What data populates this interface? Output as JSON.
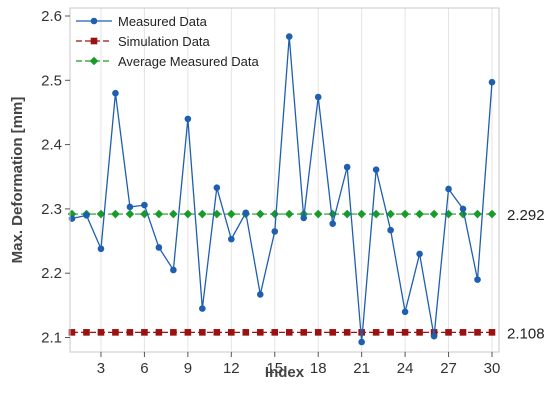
{
  "chart_data": {
    "type": "line",
    "xlabel": "Index",
    "ylabel": "Max. Deformation [mm]",
    "xlim": [
      0,
      31
    ],
    "ylim": [
      2.08,
      2.61
    ],
    "x_ticks": [
      3,
      6,
      9,
      12,
      15,
      18,
      21,
      24,
      27,
      30
    ],
    "y_ticks": [
      2.1,
      2.2,
      2.3,
      2.4,
      2.5,
      2.6
    ],
    "grid": "vertical",
    "legend_position": "top-left",
    "x": [
      1,
      2,
      3,
      4,
      5,
      6,
      7,
      8,
      9,
      10,
      11,
      12,
      13,
      14,
      15,
      16,
      17,
      18,
      19,
      20,
      21,
      22,
      23,
      24,
      25,
      26,
      27,
      28,
      29,
      30
    ],
    "series": [
      {
        "name": "Measured Data",
        "color": "#1f5fb0",
        "marker": "circle",
        "line_style": "solid",
        "values": [
          2.285,
          2.29,
          2.238,
          2.48,
          2.303,
          2.306,
          2.24,
          2.205,
          2.44,
          2.145,
          2.333,
          2.253,
          2.294,
          2.167,
          2.265,
          2.568,
          2.286,
          2.474,
          2.277,
          2.365,
          2.093,
          2.361,
          2.267,
          2.14,
          2.23,
          2.102,
          2.331,
          2.3,
          2.19,
          2.497
        ]
      },
      {
        "name": "Simulation Data",
        "color": "#9b1010",
        "marker": "square",
        "line_style": "dashed",
        "values": [
          2.108,
          2.108,
          2.108,
          2.108,
          2.108,
          2.108,
          2.108,
          2.108,
          2.108,
          2.108,
          2.108,
          2.108,
          2.108,
          2.108,
          2.108,
          2.108,
          2.108,
          2.108,
          2.108,
          2.108,
          2.108,
          2.108,
          2.108,
          2.108,
          2.108,
          2.108,
          2.108,
          2.108,
          2.108,
          2.108
        ]
      },
      {
        "name": "Average Measured Data",
        "color": "#1a9a2a",
        "marker": "diamond",
        "line_style": "dashed",
        "values": [
          2.292,
          2.292,
          2.292,
          2.292,
          2.292,
          2.292,
          2.292,
          2.292,
          2.292,
          2.292,
          2.292,
          2.292,
          2.292,
          2.292,
          2.292,
          2.292,
          2.292,
          2.292,
          2.292,
          2.292,
          2.292,
          2.292,
          2.292,
          2.292,
          2.292,
          2.292,
          2.292,
          2.292,
          2.292,
          2.292
        ]
      }
    ],
    "reference_labels": [
      {
        "text": "2.292",
        "value": 2.292
      },
      {
        "text": "2.108",
        "value": 2.108
      }
    ]
  }
}
